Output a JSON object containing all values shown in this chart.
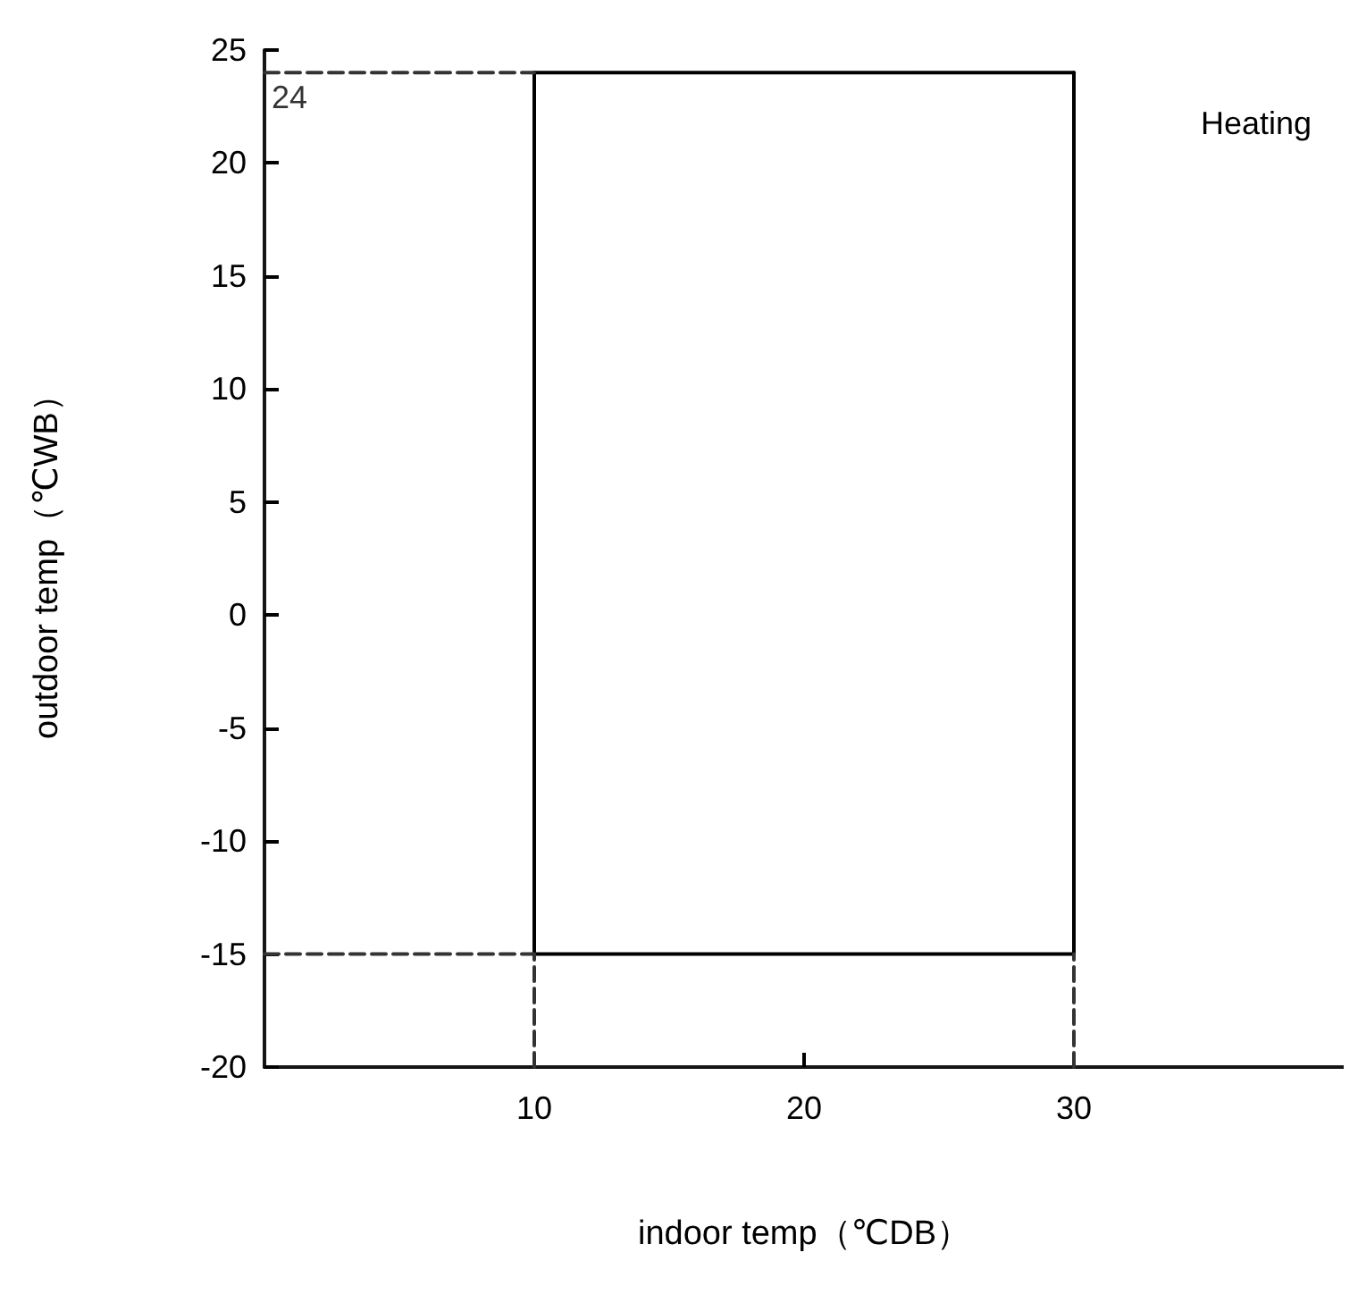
{
  "chart_data": {
    "type": "line",
    "xlabel": "indoor temp（℃DB）",
    "ylabel": "outdoor temp（℃WB）",
    "xlim": [
      0,
      40
    ],
    "xticks": [
      10,
      20,
      30
    ],
    "ylim": [
      -20,
      25
    ],
    "yticks": [
      -20,
      -15,
      -10,
      -5,
      0,
      5,
      10,
      15,
      20,
      25
    ],
    "grid": false,
    "marker": "none",
    "series": [
      {
        "x": [
          10,
          30
        ],
        "values": [
          24,
          24
        ],
        "color": "#000000",
        "line_style": "solid"
      },
      {
        "x": [
          10,
          30
        ],
        "values": [
          -15,
          -15
        ],
        "color": "#000000",
        "line_style": "solid"
      },
      {
        "x": [
          10,
          10
        ],
        "values": [
          -15,
          24
        ],
        "color": "#000000",
        "line_style": "solid"
      },
      {
        "x": [
          30,
          30
        ],
        "values": [
          -15,
          24
        ],
        "color": "#000000",
        "line_style": "solid"
      },
      {
        "x": [
          0,
          10
        ],
        "values": [
          24,
          24
        ],
        "color": "#333333",
        "line_style": "dashed"
      },
      {
        "x": [
          0,
          10
        ],
        "values": [
          -15,
          -15
        ],
        "color": "#333333",
        "line_style": "dashed"
      },
      {
        "x": [
          10,
          10
        ],
        "values": [
          -20,
          -15
        ],
        "color": "#333333",
        "line_style": "dashed"
      },
      {
        "x": [
          30,
          30
        ],
        "values": [
          -20,
          -15
        ],
        "color": "#333333",
        "line_style": "dashed"
      }
    ],
    "annotations": [
      {
        "text": "24",
        "x": 0,
        "y": 24
      },
      "Heating"
    ]
  }
}
